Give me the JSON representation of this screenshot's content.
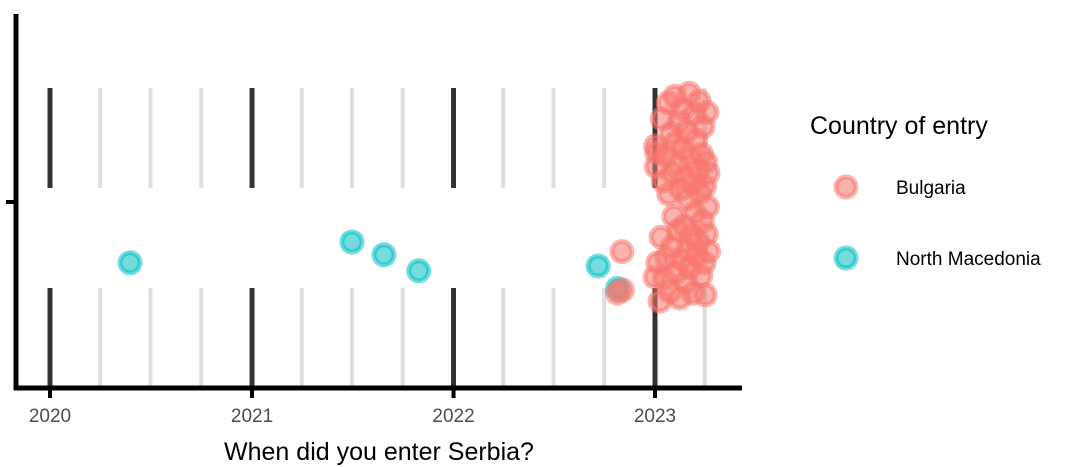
{
  "chart_data": {
    "type": "scatter",
    "xlabel": "When did you enter Serbia?",
    "ylabel": "",
    "x_ticks": [
      "2020",
      "2021",
      "2022",
      "2023"
    ],
    "xlim": [
      "2019-11-15",
      "2023-07-15"
    ],
    "grid": "vertical major and minor lines (quarterly), drawn in two bands",
    "legend": {
      "title": "Country of entry",
      "placement": "right",
      "entries": [
        {
          "name": "Bulgaria",
          "color": "#F8766D"
        },
        {
          "name": "North Macedonia",
          "color": "#00BFC4"
        }
      ]
    },
    "series": [
      {
        "name": "North Macedonia",
        "color": "#00BFC4",
        "points": [
          {
            "x": "2020-05-25",
            "y": -0.38
          },
          {
            "x": "2021-07-01",
            "y": -0.25
          },
          {
            "x": "2021-08-28",
            "y": -0.33
          },
          {
            "x": "2021-10-30",
            "y": -0.43
          },
          {
            "x": "2022-09-20",
            "y": -0.4
          },
          {
            "x": "2022-10-25",
            "y": -0.54
          }
        ]
      },
      {
        "name": "Bulgaria",
        "color": "#F8766D",
        "points": [
          {
            "x": "2022-10-25",
            "y": -0.57
          },
          {
            "x": "2022-11-03",
            "y": -0.55
          },
          {
            "x": "2022-11-02",
            "y": -0.31
          },
          {
            "x": "2023-01-01",
            "y": -0.47
          },
          {
            "x": "2023-01-02",
            "y": 0.35
          },
          {
            "x": "2023-01-03",
            "y": 0.22
          },
          {
            "x": "2023-01-04",
            "y": 0.31
          },
          {
            "x": "2023-01-06",
            "y": -0.38
          },
          {
            "x": "2023-01-10",
            "y": -0.62
          },
          {
            "x": "2023-01-12",
            "y": -0.22
          },
          {
            "x": "2023-01-14",
            "y": 0.52
          },
          {
            "x": "2023-01-16",
            "y": 0.13
          },
          {
            "x": "2023-01-18",
            "y": -0.48
          },
          {
            "x": "2023-01-20",
            "y": 0.29
          },
          {
            "x": "2023-01-22",
            "y": -0.35
          },
          {
            "x": "2023-01-25",
            "y": 0.62
          },
          {
            "x": "2023-01-26",
            "y": 0.05
          },
          {
            "x": "2023-01-28",
            "y": -0.56
          },
          {
            "x": "2023-01-30",
            "y": 0.43
          },
          {
            "x": "2023-02-01",
            "y": -0.28
          },
          {
            "x": "2023-02-02",
            "y": 0.18
          },
          {
            "x": "2023-02-04",
            "y": -0.09
          },
          {
            "x": "2023-02-06",
            "y": 0.66
          },
          {
            "x": "2023-02-07",
            "y": 0.37
          },
          {
            "x": "2023-02-09",
            "y": -0.44
          },
          {
            "x": "2023-02-11",
            "y": 0.24
          },
          {
            "x": "2023-02-12",
            "y": -0.18
          },
          {
            "x": "2023-02-14",
            "y": 0.5
          },
          {
            "x": "2023-02-15",
            "y": -0.6
          },
          {
            "x": "2023-02-17",
            "y": 0.08
          },
          {
            "x": "2023-02-18",
            "y": -0.36
          },
          {
            "x": "2023-02-20",
            "y": 0.58
          },
          {
            "x": "2023-02-21",
            "y": 0.33
          },
          {
            "x": "2023-02-23",
            "y": -0.15
          },
          {
            "x": "2023-02-24",
            "y": 0.15
          },
          {
            "x": "2023-02-26",
            "y": -0.5
          },
          {
            "x": "2023-02-27",
            "y": 0.44
          },
          {
            "x": "2023-03-01",
            "y": -0.3
          },
          {
            "x": "2023-03-02",
            "y": 0.02
          },
          {
            "x": "2023-03-04",
            "y": 0.68
          },
          {
            "x": "2023-03-05",
            "y": -0.41
          },
          {
            "x": "2023-03-07",
            "y": 0.27
          },
          {
            "x": "2023-03-08",
            "y": -0.21
          },
          {
            "x": "2023-03-10",
            "y": 0.12
          },
          {
            "x": "2023-03-11",
            "y": -0.57
          },
          {
            "x": "2023-03-13",
            "y": 0.55
          },
          {
            "x": "2023-03-14",
            "y": -0.07
          },
          {
            "x": "2023-03-16",
            "y": 0.39
          },
          {
            "x": "2023-03-17",
            "y": -0.33
          },
          {
            "x": "2023-03-19",
            "y": 0.2
          },
          {
            "x": "2023-03-20",
            "y": -0.25
          },
          {
            "x": "2023-03-22",
            "y": 0.63
          },
          {
            "x": "2023-03-23",
            "y": 0.06
          },
          {
            "x": "2023-03-25",
            "y": -0.46
          },
          {
            "x": "2023-03-26",
            "y": 0.3
          },
          {
            "x": "2023-03-28",
            "y": -0.12
          },
          {
            "x": "2023-03-29",
            "y": 0.47
          },
          {
            "x": "2023-03-31",
            "y": -0.38
          },
          {
            "x": "2023-04-01",
            "y": 0.1
          },
          {
            "x": "2023-04-02",
            "y": -0.58
          },
          {
            "x": "2023-04-03",
            "y": 0.25
          },
          {
            "x": "2023-04-04",
            "y": -0.2
          },
          {
            "x": "2023-04-05",
            "y": 0.56
          },
          {
            "x": "2023-04-06",
            "y": -0.03
          },
          {
            "x": "2023-04-07",
            "y": 0.18
          },
          {
            "x": "2023-04-08",
            "y": -0.31
          }
        ]
      }
    ]
  }
}
